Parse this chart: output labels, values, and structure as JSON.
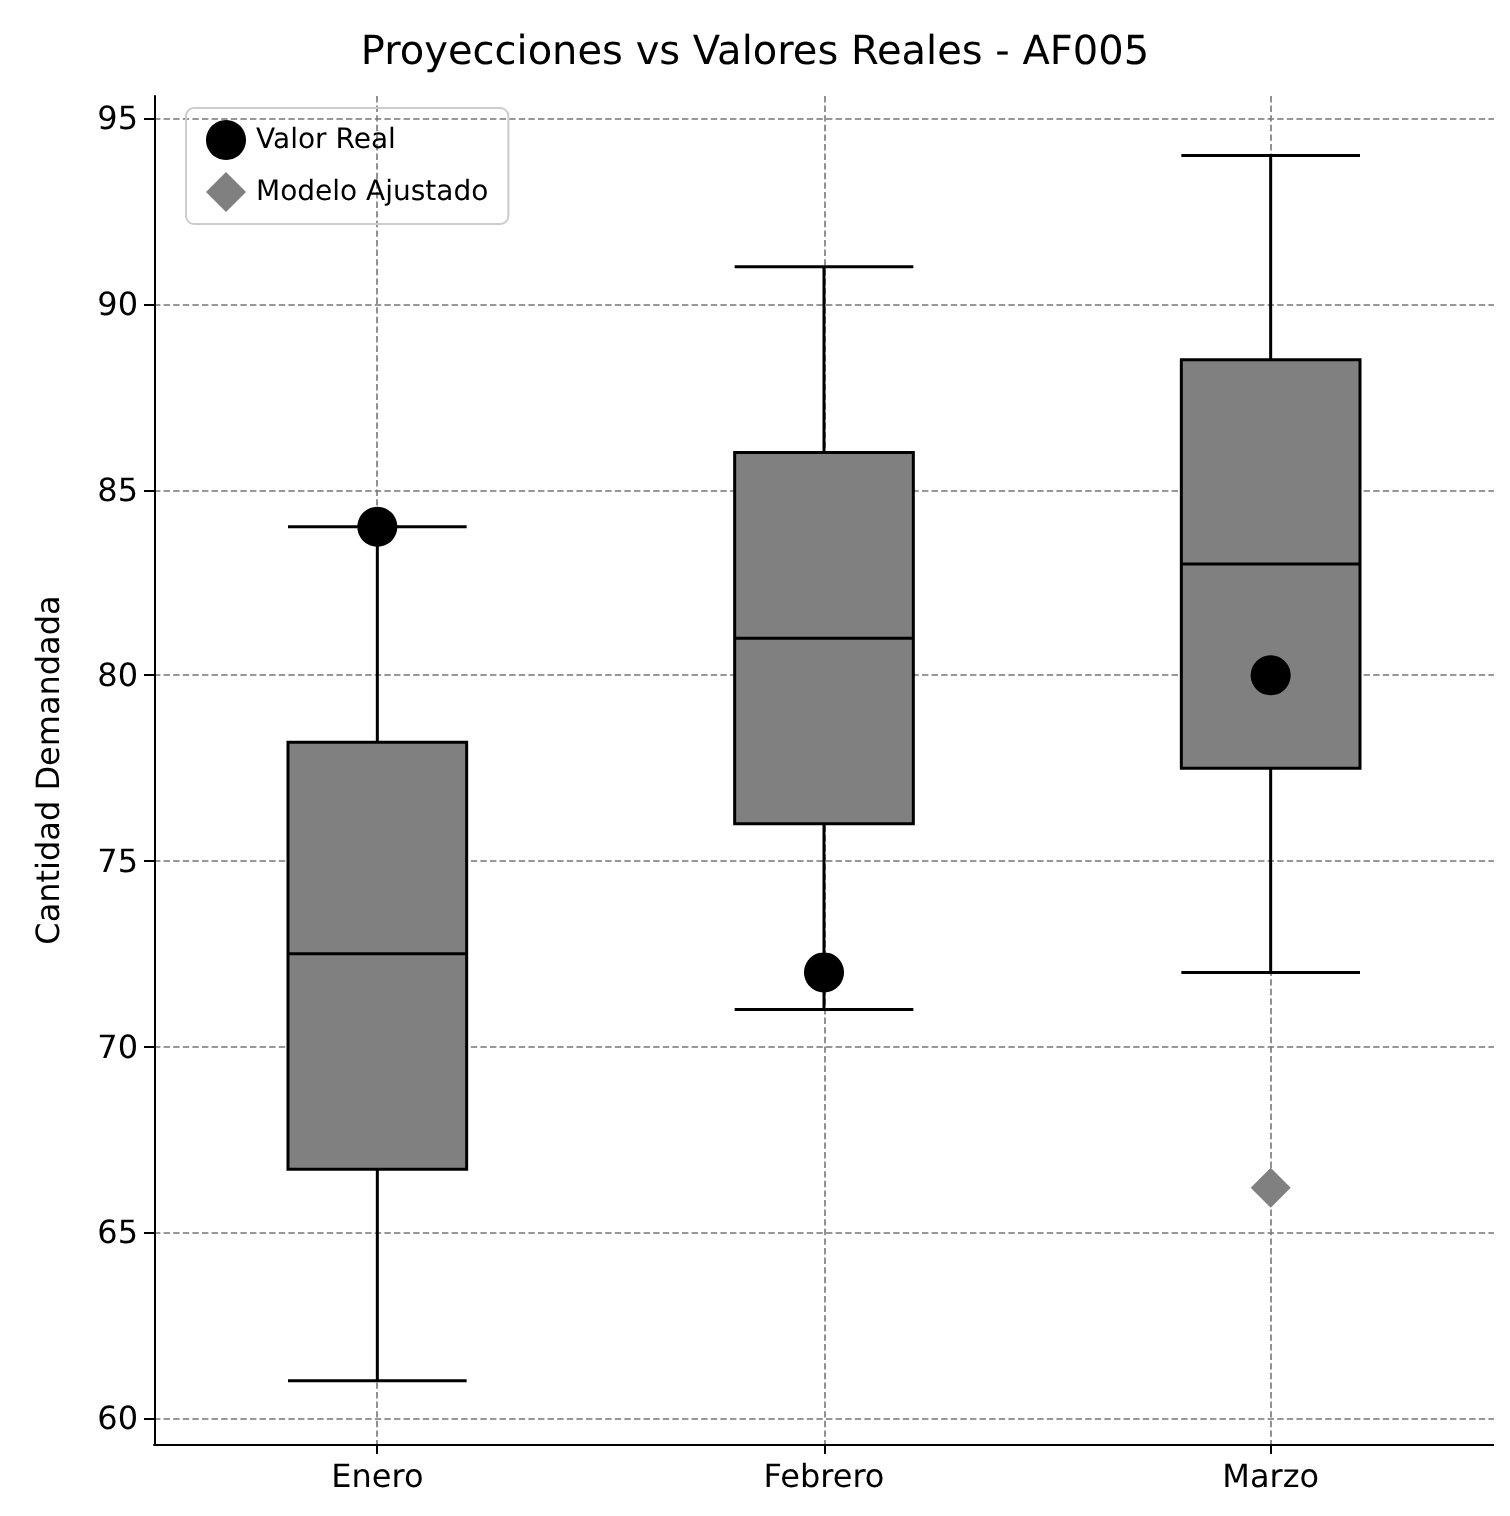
{
  "chart_data": {
    "type": "box",
    "title": "Proyecciones vs Valores Reales - AF005",
    "ylabel": "Cantidad Demandada",
    "categories": [
      "Enero",
      "Febrero",
      "Marzo"
    ],
    "ylim": [
      59.3,
      95.6
    ],
    "yticks": [
      60,
      65,
      70,
      75,
      80,
      85,
      90,
      95
    ],
    "grid": true,
    "legend": "top left",
    "series": [
      {
        "color": "#808080",
        "boxes": [
          {
            "low": 61,
            "q1": 66.7,
            "median": 72.5,
            "q3": 78.2,
            "high": 84
          },
          {
            "low": 71,
            "q1": 76,
            "median": 81,
            "q3": 86,
            "high": 91
          },
          {
            "low": 72,
            "q1": 77.5,
            "median": 83,
            "q3": 88.5,
            "high": 94
          }
        ]
      },
      {
        "type": "scatter",
        "name": "Valor Real",
        "color": "#000000",
        "marker": "circle",
        "x": [
          "Enero",
          "Febrero",
          "Marzo"
        ],
        "values": [
          84,
          72,
          80
        ]
      },
      {
        "type": "scatter",
        "name": "Modelo Ajustado",
        "color": "#808080",
        "marker": "diamond",
        "x": [
          "Enero",
          "Febrero",
          "Marzo"
        ],
        "values": [
          null,
          null,
          66.2
        ]
      }
    ]
  }
}
